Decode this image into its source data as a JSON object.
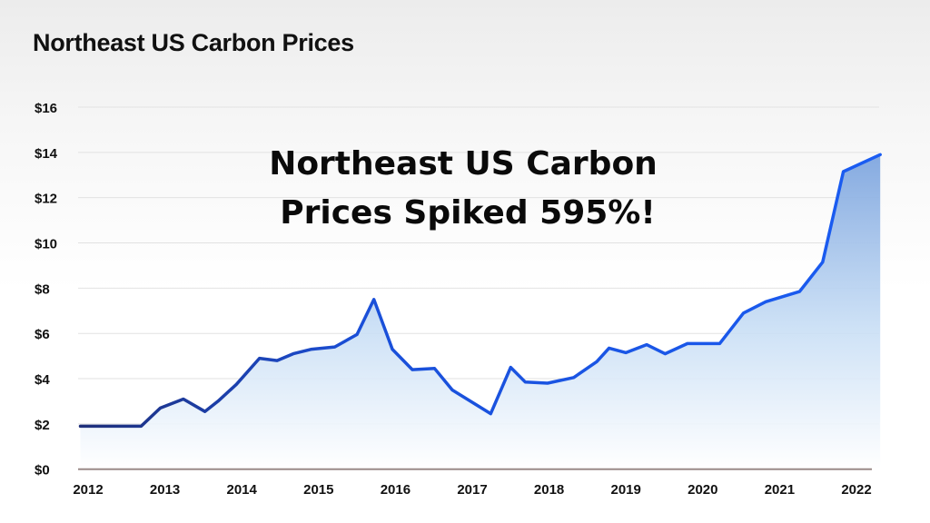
{
  "chart_data": {
    "type": "area",
    "title": "Northeast US Carbon Prices",
    "annotation": [
      "Northeast US Carbon",
      "Prices Spiked 595%!"
    ],
    "xlabel": "",
    "ylabel": "",
    "x_ticks": [
      "2012",
      "2013",
      "2014",
      "2015",
      "2016",
      "2017",
      "2018",
      "2019",
      "2020",
      "2021",
      "2022"
    ],
    "y_ticks": [
      "$0",
      "$2",
      "$4",
      "$6",
      "$8",
      "$10",
      "$12",
      "$14",
      "$16"
    ],
    "ylim": [
      0,
      16
    ],
    "xlim": [
      2011.9,
      2022.3
    ],
    "grid": true,
    "legend": "none",
    "colors": {
      "line_start": "#1f2f7a",
      "line_end": "#1a5cf2",
      "fill_top": "#7fa6df",
      "fill_bottom": "#ffffff",
      "axis": "#9a8a88",
      "grid": "#e2e2e2"
    },
    "x": [
      2011.9,
      2012.69,
      2012.94,
      2013.24,
      2013.52,
      2013.69,
      2013.93,
      2014.23,
      2014.46,
      2014.67,
      2014.91,
      2015.21,
      2015.5,
      2015.72,
      2015.96,
      2016.22,
      2016.51,
      2016.74,
      2017.24,
      2017.5,
      2017.69,
      2017.98,
      2018.32,
      2018.62,
      2018.78,
      2019.0,
      2019.27,
      2019.51,
      2019.8,
      2020.22,
      2020.53,
      2020.82,
      2021.26,
      2021.56,
      2021.83,
      2022.31
    ],
    "values": [
      1.9,
      1.9,
      2.7,
      3.1,
      2.55,
      3.0,
      3.75,
      4.9,
      4.8,
      5.1,
      5.3,
      5.4,
      5.95,
      7.5,
      5.3,
      4.4,
      4.45,
      3.5,
      2.45,
      4.5,
      3.85,
      3.8,
      4.05,
      4.75,
      5.35,
      5.15,
      5.5,
      5.1,
      5.55,
      5.55,
      6.9,
      7.4,
      7.85,
      9.15,
      13.15,
      13.9
    ]
  }
}
